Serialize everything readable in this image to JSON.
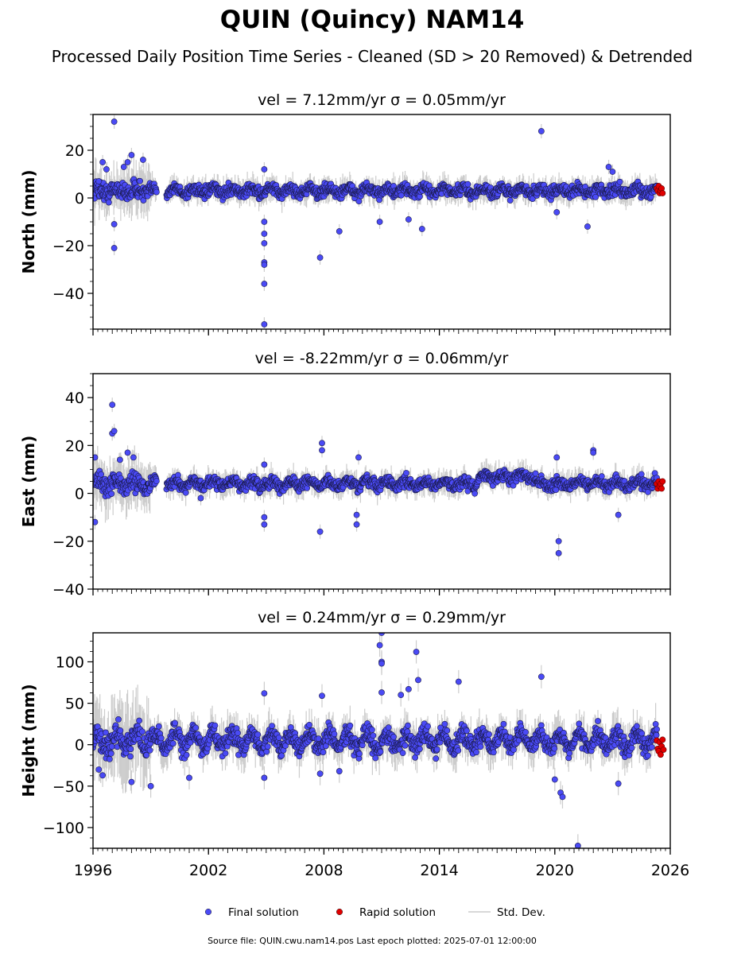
{
  "title": "QUIN (Quincy) NAM14",
  "subtitle": "Processed Daily Position Time Series - Cleaned (SD > 20 Removed) & Detrended",
  "footer": "Source file: QUIN.cwu.nam14.pos  Last epoch plotted: 2025-07-01 12:00:00",
  "legend": [
    {
      "label": "Final solution",
      "color": "#4a4af5",
      "kind": "marker"
    },
    {
      "label": "Rapid solution",
      "color": "#e00000",
      "kind": "marker"
    },
    {
      "label": "Std. Dev.",
      "color": "#cccccc",
      "kind": "line"
    }
  ],
  "chart_data": [
    {
      "type": "scatter",
      "name": "north",
      "title": "vel = 7.12mm/yr   σ = 0.05mm/yr",
      "ylabel": "North (mm)",
      "xlim": [
        1996,
        2026
      ],
      "ylim": [
        -55,
        35
      ],
      "yticks": [
        20,
        0,
        -20,
        -40
      ],
      "xticks": [
        1996,
        2002,
        2008,
        2014,
        2020,
        2026
      ],
      "baseline": 3,
      "noise": 3,
      "final_points": [
        [
          1996.3,
          7
        ],
        [
          1996.5,
          15
        ],
        [
          1996.7,
          12
        ],
        [
          1997.1,
          32
        ],
        [
          1997.1,
          -11
        ],
        [
          1997.1,
          -21
        ],
        [
          1997.6,
          13
        ],
        [
          1997.8,
          15
        ],
        [
          1998.0,
          18
        ],
        [
          1998.6,
          16
        ],
        [
          2004.9,
          12
        ],
        [
          2004.9,
          -10
        ],
        [
          2004.9,
          -15
        ],
        [
          2004.9,
          -19
        ],
        [
          2004.9,
          -27
        ],
        [
          2004.9,
          -28
        ],
        [
          2004.9,
          -36
        ],
        [
          2004.9,
          -53
        ],
        [
          2007.8,
          -25
        ],
        [
          2008.8,
          -14
        ],
        [
          2010.9,
          -10
        ],
        [
          2012.4,
          -9
        ],
        [
          2013.1,
          -13
        ],
        [
          2019.3,
          28
        ],
        [
          2020.1,
          -6
        ],
        [
          2021.7,
          -12
        ],
        [
          2022.8,
          13
        ],
        [
          2023.0,
          11
        ]
      ],
      "rapid_points": [
        [
          2025.3,
          4
        ],
        [
          2025.35,
          3
        ],
        [
          2025.4,
          5
        ],
        [
          2025.45,
          2
        ],
        [
          2025.5,
          3
        ],
        [
          2025.55,
          4
        ],
        [
          2025.6,
          2
        ]
      ]
    },
    {
      "type": "scatter",
      "name": "east",
      "title": "vel = -8.22mm/yr   σ = 0.06mm/yr",
      "ylabel": "East (mm)",
      "xlim": [
        1996,
        2026
      ],
      "ylim": [
        -40,
        50
      ],
      "yticks": [
        40,
        20,
        0,
        -20,
        -40
      ],
      "xticks": [
        1996,
        2002,
        2008,
        2014,
        2020,
        2026
      ],
      "baseline": 4,
      "noise": 3,
      "final_points": [
        [
          1996.1,
          -12
        ],
        [
          1996.1,
          15
        ],
        [
          2001.6,
          -2
        ],
        [
          1997.0,
          37
        ],
        [
          1997.0,
          25
        ],
        [
          1997.1,
          26
        ],
        [
          1997.4,
          14
        ],
        [
          1997.8,
          17
        ],
        [
          1998.1,
          15
        ],
        [
          2004.9,
          -10
        ],
        [
          2004.9,
          -13
        ],
        [
          2004.9,
          12
        ],
        [
          2007.9,
          21
        ],
        [
          2007.9,
          18
        ],
        [
          2007.8,
          -16
        ],
        [
          2009.7,
          -9
        ],
        [
          2009.7,
          -13
        ],
        [
          2009.8,
          15
        ],
        [
          2020.2,
          -20
        ],
        [
          2020.2,
          -25
        ],
        [
          2020.1,
          15
        ],
        [
          2022.0,
          18
        ],
        [
          2022.0,
          17
        ],
        [
          2024.5,
          8
        ],
        [
          2023.3,
          -9
        ]
      ],
      "rapid_points": [
        [
          2025.3,
          4
        ],
        [
          2025.35,
          2
        ],
        [
          2025.4,
          5
        ],
        [
          2025.45,
          3
        ],
        [
          2025.5,
          4
        ],
        [
          2025.55,
          2
        ],
        [
          2025.6,
          5
        ]
      ]
    },
    {
      "type": "scatter",
      "name": "height",
      "title": "vel = 0.24mm/yr   σ = 0.29mm/yr",
      "ylabel": "Height (mm)",
      "xlim": [
        1996,
        2026
      ],
      "ylim": [
        -125,
        135
      ],
      "yticks": [
        100,
        50,
        0,
        -50,
        -100
      ],
      "xticks": [
        1996,
        2002,
        2008,
        2014,
        2020,
        2026
      ],
      "baseline": 5,
      "noise": 14,
      "final_points": [
        [
          1996.3,
          -30
        ],
        [
          1996.5,
          -37
        ],
        [
          1998.0,
          -45
        ],
        [
          1999.0,
          -50
        ],
        [
          2001.0,
          -40
        ],
        [
          2004.9,
          62
        ],
        [
          2004.9,
          -40
        ],
        [
          2007.9,
          59
        ],
        [
          2007.8,
          -35
        ],
        [
          2008.8,
          -32
        ],
        [
          2010.9,
          120
        ],
        [
          2011.0,
          135
        ],
        [
          2011.0,
          100
        ],
        [
          2011.0,
          98
        ],
        [
          2011.0,
          63
        ],
        [
          2012.0,
          60
        ],
        [
          2012.8,
          112
        ],
        [
          2012.9,
          78
        ],
        [
          2012.4,
          67
        ],
        [
          2012.1,
          -10
        ],
        [
          2015.0,
          76
        ],
        [
          2019.3,
          82
        ],
        [
          2020.0,
          -42
        ],
        [
          2020.3,
          -58
        ],
        [
          2020.4,
          -63
        ],
        [
          2021.2,
          -122
        ],
        [
          2023.3,
          -47
        ]
      ],
      "rapid_points": [
        [
          2025.3,
          5
        ],
        [
          2025.35,
          -5
        ],
        [
          2025.4,
          -8
        ],
        [
          2025.45,
          3
        ],
        [
          2025.5,
          -12
        ],
        [
          2025.55,
          -2
        ],
        [
          2025.6,
          6
        ],
        [
          2025.65,
          -6
        ]
      ]
    }
  ]
}
